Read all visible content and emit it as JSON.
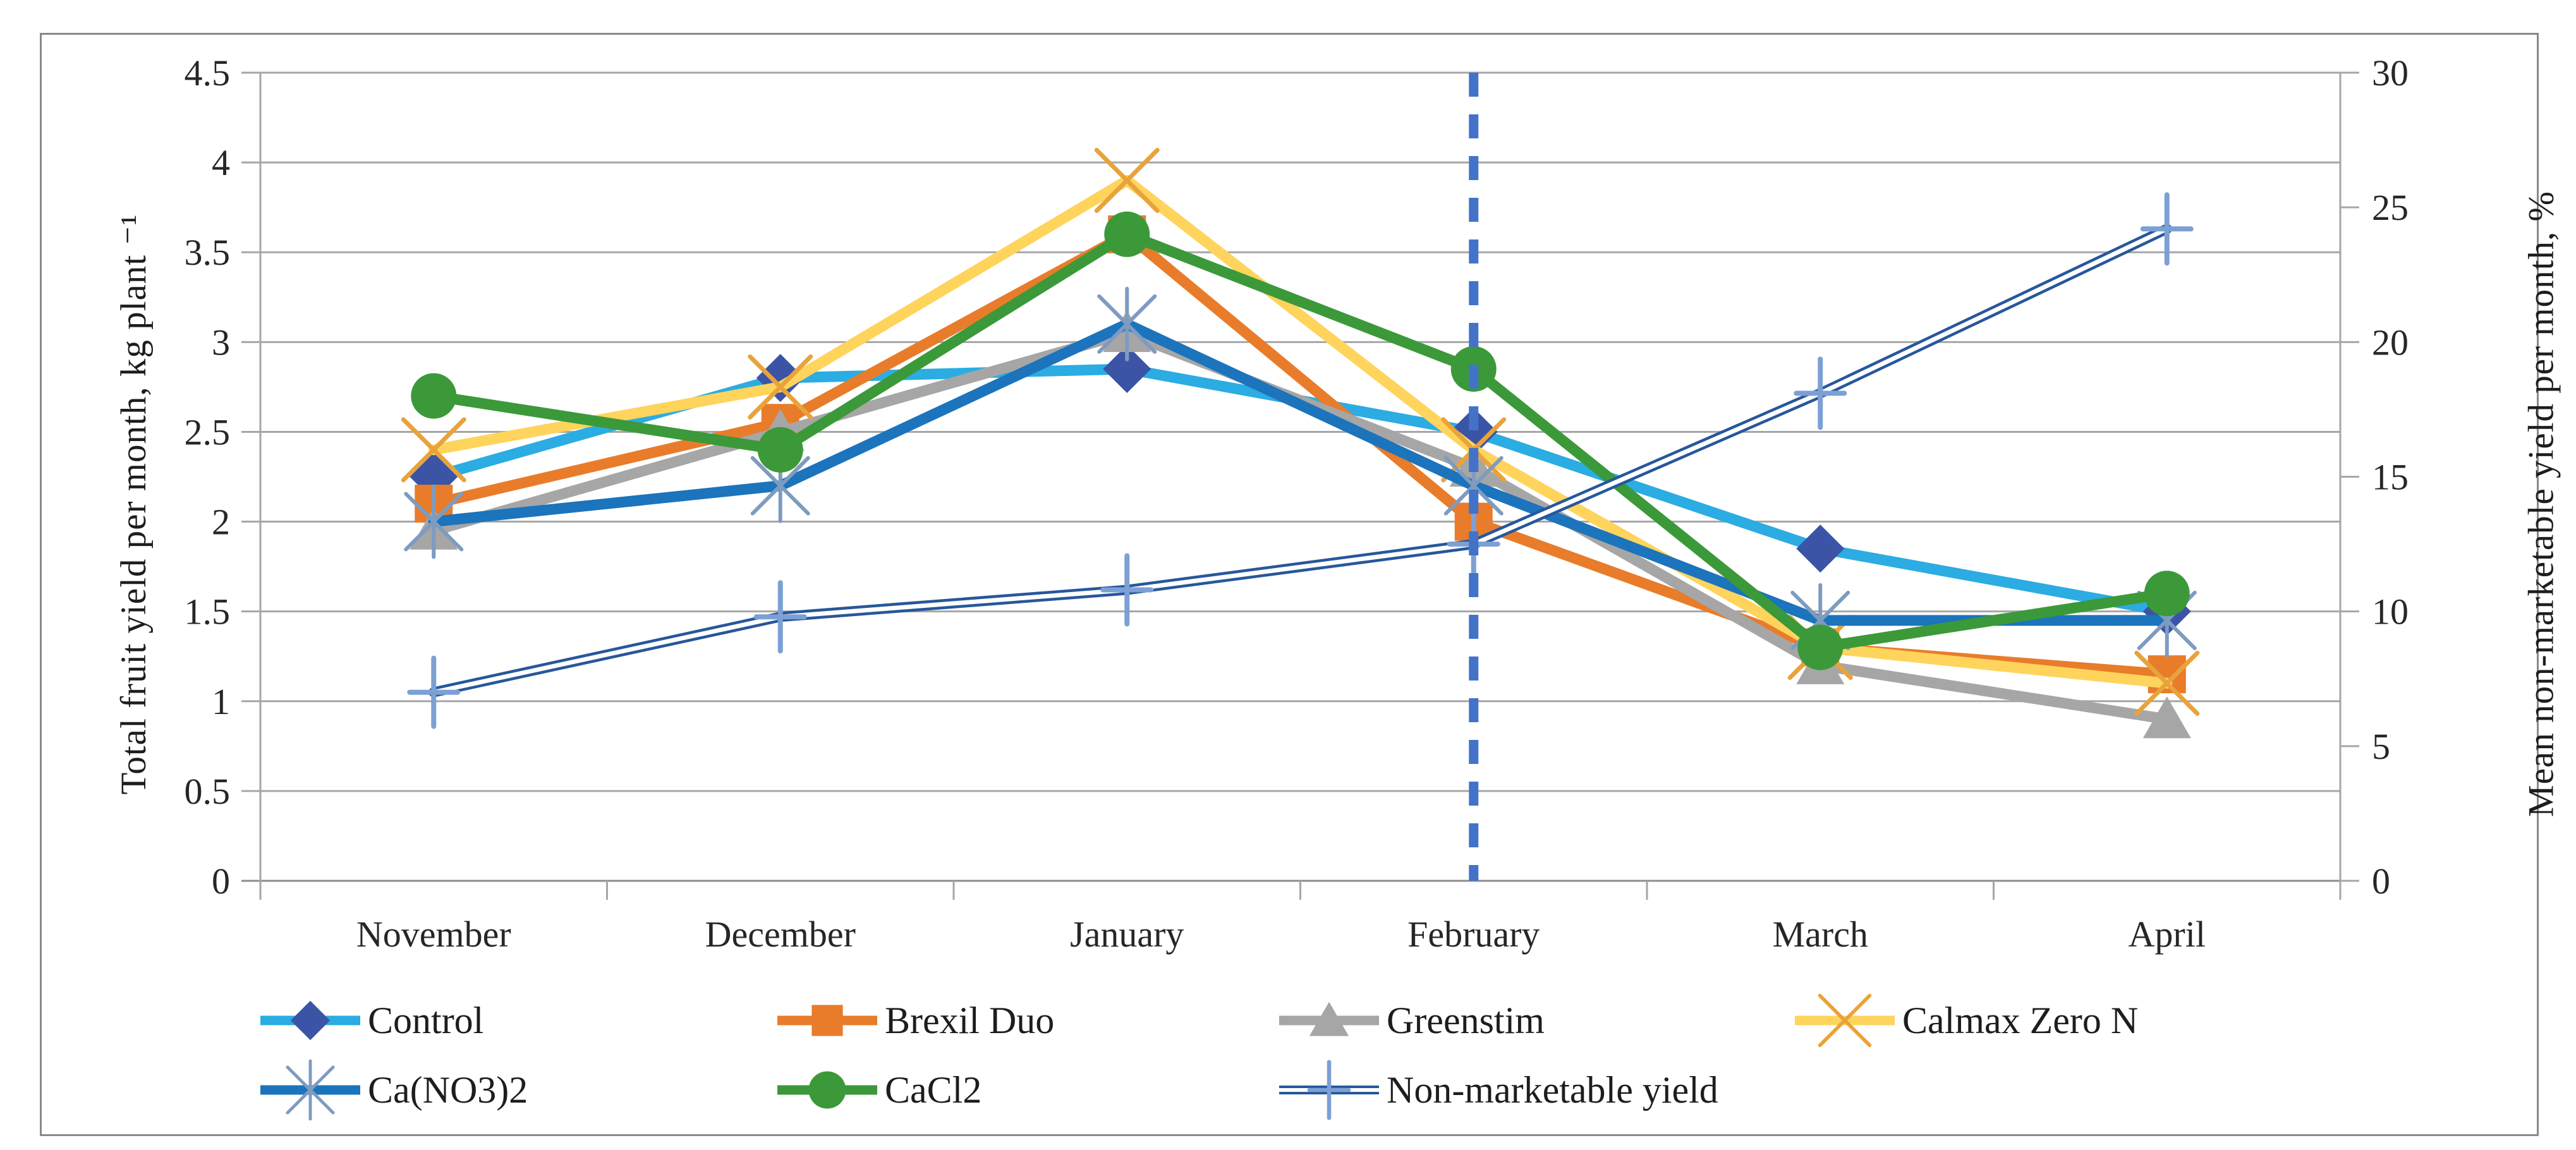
{
  "figure": {
    "type": "dual-axis line chart",
    "border_color": "#898989",
    "background": "#ffffff"
  },
  "colors": {
    "grid": "#a6a6a6",
    "axis_line": "#a6a6a6",
    "tick_text": "#262626",
    "dashed_vline": "#4273c8"
  },
  "legend": {
    "items": [
      {
        "key": "control",
        "label": "Control",
        "row": 0,
        "col": 0
      },
      {
        "key": "brexil",
        "label": "Brexil Duo",
        "row": 0,
        "col": 1
      },
      {
        "key": "greenstim",
        "label": "Greenstim",
        "row": 0,
        "col": 2
      },
      {
        "key": "calmax",
        "label": "Calmax Zero N",
        "row": 0,
        "col": 3
      },
      {
        "key": "canno3",
        "label": "Ca(NO3)2",
        "row": 1,
        "col": 0
      },
      {
        "key": "cacl2",
        "label": "CaCl2",
        "row": 1,
        "col": 1
      },
      {
        "key": "nonmarketable",
        "label": "Non-marketable yield",
        "row": 1,
        "col": 2
      }
    ]
  },
  "chart_data": {
    "type": "line",
    "categories": [
      "November",
      "December",
      "January",
      "February",
      "March",
      "April"
    ],
    "left_axis": {
      "label": "Total fruit yield per month, kg plant ⁻¹",
      "min": 0,
      "max": 4.5,
      "step": 0.5,
      "tick_labels": [
        "0",
        "0.5",
        "1",
        "1.5",
        "2",
        "2.5",
        "3",
        "3.5",
        "4",
        "4.5"
      ]
    },
    "right_axis": {
      "label": "Mean non-marketable yield per month, %",
      "min": 0,
      "max": 30,
      "step": 5,
      "tick_labels": [
        "0",
        "5",
        "10",
        "15",
        "20",
        "25",
        "30"
      ]
    },
    "grid": "horizontal",
    "legend_position": "bottom",
    "annotations": [
      {
        "type": "vline",
        "at_category": "February",
        "style": "dashed",
        "color": "#4273c8"
      }
    ],
    "series": [
      {
        "key": "control",
        "name": "Control",
        "axis": "left",
        "marker": "diamond",
        "color": "#2bace2",
        "marker_color": "#3b54a5",
        "values": [
          2.25,
          2.8,
          2.85,
          2.5,
          1.85,
          1.5
        ]
      },
      {
        "key": "brexil",
        "name": "Brexil Duo",
        "axis": "left",
        "marker": "square",
        "color": "#e87c2a",
        "marker_color": "#e87c2a",
        "values": [
          2.1,
          2.55,
          3.6,
          2.0,
          1.3,
          1.15
        ]
      },
      {
        "key": "greenstim",
        "name": "Greenstim",
        "axis": "left",
        "marker": "triangle",
        "color": "#a6a6a6",
        "marker_color": "#a6a6a6",
        "values": [
          1.95,
          2.5,
          3.05,
          2.3,
          1.2,
          0.9
        ]
      },
      {
        "key": "calmax",
        "name": "Calmax Zero N",
        "axis": "left",
        "marker": "xmark",
        "color": "#ffd45c",
        "marker_color": "#e8a33b",
        "values": [
          2.4,
          2.75,
          3.9,
          2.4,
          1.3,
          1.1
        ]
      },
      {
        "key": "canno3",
        "name": "Ca(NO3)2",
        "axis": "left",
        "marker": "asterisk",
        "color": "#1b74bc",
        "marker_color": "#7e9bc0",
        "values": [
          2.0,
          2.2,
          3.1,
          2.2,
          1.45,
          1.45
        ]
      },
      {
        "key": "cacl2",
        "name": "CaCl2",
        "axis": "left",
        "marker": "circle",
        "color": "#3b9939",
        "marker_color": "#3b9939",
        "values": [
          2.7,
          2.4,
          3.6,
          2.85,
          1.3,
          1.6
        ]
      },
      {
        "key": "nonmarketable",
        "name": "Non-marketable yield",
        "axis": "right",
        "marker": "plus",
        "color": "#27579b",
        "marker_color": "#7da0d4",
        "line_style": "double",
        "values": [
          7.0,
          9.8,
          10.8,
          12.5,
          18.1,
          24.2
        ]
      }
    ]
  }
}
